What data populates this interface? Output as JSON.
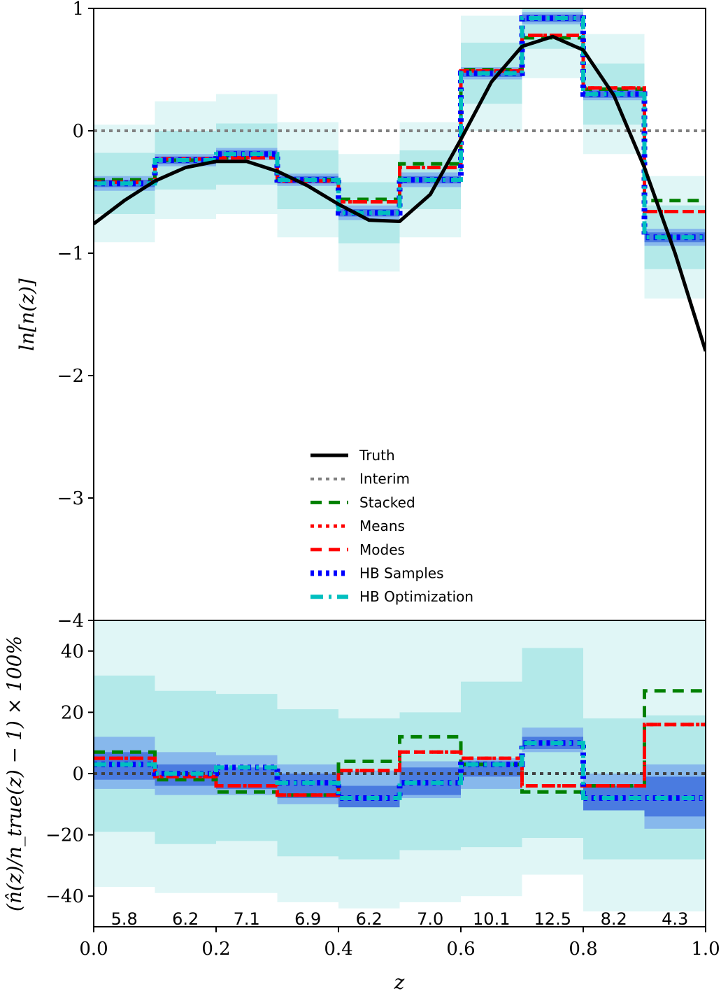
{
  "chart_data": [
    {
      "type": "line",
      "panel": "top",
      "ylabel": "ln[n(z)]",
      "xlim": [
        0.0,
        1.0
      ],
      "ylim": [
        -4,
        1
      ],
      "yticks": [
        1,
        0,
        -1,
        -2,
        -3,
        -4
      ],
      "ytick_labels": [
        "1",
        "0",
        "−1",
        "−2",
        "−3",
        "−4"
      ],
      "bin_edges": [
        0.0,
        0.1,
        0.2,
        0.3,
        0.4,
        0.5,
        0.6,
        0.7,
        0.8,
        0.9,
        1.0
      ],
      "legend": {
        "placement": "lower-center",
        "entries": [
          "Truth",
          "Interim",
          "Stacked",
          "Means",
          "Modes",
          "HB Samples",
          "HB Optimization"
        ]
      },
      "truth_curve": {
        "name": "Truth",
        "color": "#000000",
        "x": [
          0.0,
          0.05,
          0.1,
          0.15,
          0.2,
          0.25,
          0.3,
          0.35,
          0.4,
          0.45,
          0.5,
          0.55,
          0.6,
          0.65,
          0.7,
          0.75,
          0.8,
          0.85,
          0.9,
          0.95,
          1.0
        ],
        "y": [
          -0.76,
          -0.57,
          -0.41,
          -0.3,
          -0.25,
          -0.25,
          -0.33,
          -0.45,
          -0.6,
          -0.73,
          -0.74,
          -0.52,
          -0.07,
          0.4,
          0.69,
          0.77,
          0.66,
          0.29,
          -0.3,
          -1.0,
          -1.8
        ]
      },
      "series": [
        {
          "name": "Interim",
          "color": "#808080",
          "style": "dotted",
          "values": [
            0,
            0,
            0,
            0,
            0,
            0,
            0,
            0,
            0,
            0
          ]
        },
        {
          "name": "Stacked",
          "color": "#008000",
          "style": "dashed",
          "values": [
            -0.4,
            -0.24,
            -0.22,
            -0.4,
            -0.56,
            -0.27,
            0.5,
            0.76,
            0.34,
            -0.57
          ]
        },
        {
          "name": "Means",
          "color": "#ff0000",
          "style": "dotted",
          "values": [
            -0.42,
            -0.23,
            -0.22,
            -0.41,
            -0.58,
            -0.3,
            0.49,
            0.78,
            0.35,
            -0.66
          ]
        },
        {
          "name": "Modes",
          "color": "#ff0000",
          "style": "dashed",
          "values": [
            -0.42,
            -0.23,
            -0.22,
            -0.41,
            -0.58,
            -0.3,
            0.49,
            0.78,
            0.35,
            -0.66
          ]
        },
        {
          "name": "HB Samples",
          "color": "#0000ff",
          "style": "dotted",
          "values": [
            -0.43,
            -0.24,
            -0.19,
            -0.4,
            -0.67,
            -0.4,
            0.47,
            0.92,
            0.3,
            -0.87
          ]
        },
        {
          "name": "HB Optimization",
          "color": "#00bfbf",
          "style": "dashdot",
          "values": [
            -0.43,
            -0.24,
            -0.19,
            -0.4,
            -0.67,
            -0.4,
            0.47,
            0.92,
            0.3,
            -0.87
          ]
        }
      ],
      "bands": {
        "center": [
          -0.43,
          -0.24,
          -0.19,
          -0.4,
          -0.67,
          -0.4,
          0.47,
          0.92,
          0.3,
          -0.87
        ],
        "levels": [
          {
            "color": "#e0f6f6",
            "half_width": [
              0.48,
              0.48,
              0.49,
              0.47,
              0.48,
              0.47,
              0.47,
              0.49,
              0.49,
              0.5
            ]
          },
          {
            "color": "#b3e9e9",
            "half_width": [
              0.25,
              0.24,
              0.25,
              0.24,
              0.25,
              0.24,
              0.25,
              0.25,
              0.25,
              0.26
            ]
          },
          {
            "color": "#87b8ec",
            "half_width": [
              0.06,
              0.05,
              0.05,
              0.05,
              0.06,
              0.06,
              0.05,
              0.05,
              0.05,
              0.07
            ]
          },
          {
            "color": "#4a7be0",
            "half_width": [
              0.03,
              0.03,
              0.03,
              0.03,
              0.03,
              0.03,
              0.03,
              0.03,
              0.03,
              0.04
            ]
          }
        ]
      }
    },
    {
      "type": "line",
      "panel": "bottom",
      "xlabel": "z",
      "ylabel": "(n̂(z)/n_true(z) − 1) × 100%",
      "xlim": [
        0.0,
        1.0
      ],
      "ylim": [
        -50,
        50
      ],
      "xticks": [
        0.0,
        0.2,
        0.4,
        0.6,
        0.8,
        1.0
      ],
      "xtick_labels": [
        "0.0",
        "0.2",
        "0.4",
        "0.6",
        "0.8",
        "1.0"
      ],
      "yticks": [
        40,
        20,
        0,
        -20,
        -40
      ],
      "ytick_labels": [
        "40",
        "20",
        "0",
        "−20",
        "−40"
      ],
      "bin_edges": [
        0.0,
        0.1,
        0.2,
        0.3,
        0.4,
        0.5,
        0.6,
        0.7,
        0.8,
        0.9,
        1.0
      ],
      "bin_labels": [
        "5.8",
        "6.2",
        "7.1",
        "6.9",
        "6.2",
        "7.0",
        "10.1",
        "12.5",
        "8.2",
        "4.3"
      ],
      "series": [
        {
          "name": "Interim",
          "color": "#404040",
          "style": "dotted",
          "values": [
            0,
            0,
            0,
            0,
            0,
            0,
            0,
            0,
            0,
            0
          ]
        },
        {
          "name": "Stacked",
          "color": "#008000",
          "style": "dashed",
          "values": [
            7,
            -2,
            -6,
            -7,
            4,
            12,
            3,
            -6,
            -4,
            27
          ]
        },
        {
          "name": "Means",
          "color": "#ff0000",
          "style": "dotted",
          "values": [
            5,
            -1,
            -4,
            -7,
            1,
            7,
            5,
            -4,
            -4,
            16
          ]
        },
        {
          "name": "Modes",
          "color": "#ff0000",
          "style": "dashed",
          "values": [
            5,
            -1,
            -4,
            -7,
            1,
            7,
            5,
            -4,
            -4,
            16
          ]
        },
        {
          "name": "HB Samples",
          "color": "#0000ff",
          "style": "dotted",
          "values": [
            3,
            0,
            2,
            -3,
            -8,
            -3,
            3,
            10,
            -8,
            -8
          ]
        },
        {
          "name": "HB Optimization",
          "color": "#00bfbf",
          "style": "dashdot",
          "values": [
            3,
            0,
            2,
            -3,
            -8,
            -3,
            3,
            10,
            -8,
            -8
          ]
        }
      ],
      "bands": {
        "levels": [
          {
            "color": "#e0f6f6",
            "lower": [
              -37,
              -39,
              -39,
              -42,
              -44,
              -42,
              -40,
              -33,
              -45,
              -45
            ],
            "upper": [
              50,
              50,
              50,
              50,
              50,
              50,
              50,
              50,
              50,
              50
            ]
          },
          {
            "color": "#b3e9e9",
            "lower": [
              -19,
              -23,
              -22,
              -27,
              -28,
              -25,
              -24,
              -21,
              -28,
              -28
            ],
            "upper": [
              32,
              27,
              26,
              21,
              18,
              20,
              30,
              41,
              18,
              19
            ]
          },
          {
            "color": "#87b8ec",
            "lower": [
              -5,
              -7,
              -7,
              -10,
              -10,
              -8,
              -5,
              7,
              -10,
              -18
            ],
            "upper": [
              12,
              7,
              6,
              3,
              1,
              4,
              5,
              15,
              0,
              3
            ]
          },
          {
            "color": "#4a7be0",
            "lower": [
              -2,
              -4,
              -5,
              -8,
              -11,
              -7,
              -1,
              8,
              -12,
              -14
            ],
            "upper": [
              7,
              3,
              2,
              0,
              -4,
              2,
              4,
              12,
              -4,
              -1
            ]
          }
        ]
      }
    }
  ]
}
